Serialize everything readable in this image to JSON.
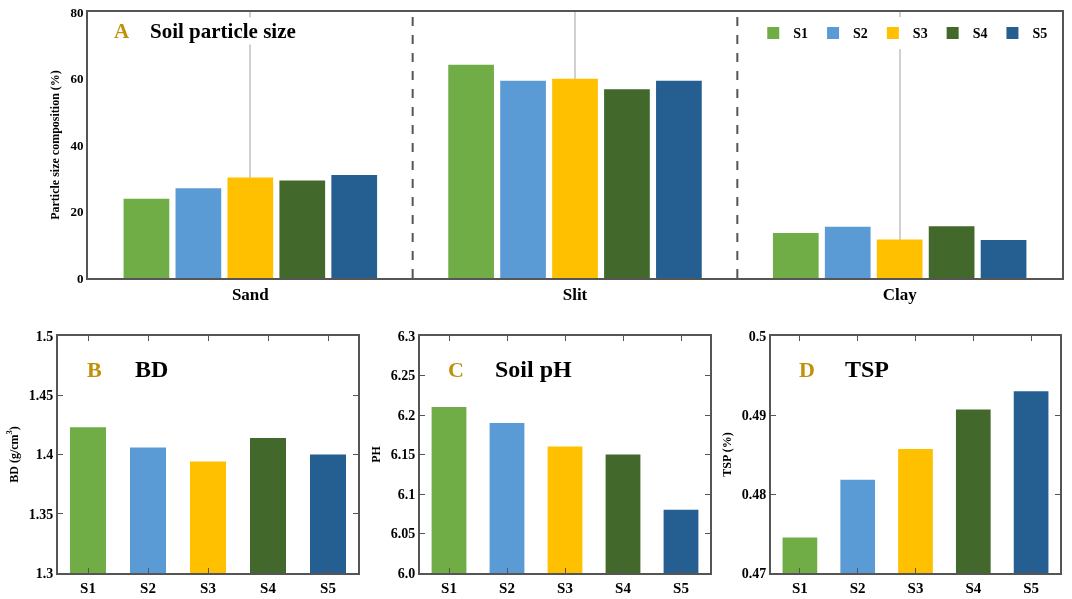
{
  "chart_data": [
    {
      "type": "bar",
      "title": "Soil particle size",
      "annotations": [
        "A"
      ],
      "ylabel": "Particle size composition (%)",
      "categories": [
        "Sand",
        "Slit",
        "Clay"
      ],
      "series": [
        {
          "name": "S1",
          "color": "#70ad47",
          "values": [
            23.8,
            64.1,
            13.5
          ]
        },
        {
          "name": "S2",
          "color": "#5b9bd5",
          "values": [
            27,
            59.3,
            15.4
          ]
        },
        {
          "name": "S3",
          "color": "#ffc000",
          "values": [
            30.2,
            59.9,
            11.6
          ]
        },
        {
          "name": "S4",
          "color": "#43682b",
          "values": [
            29.3,
            56.8,
            15.6
          ]
        },
        {
          "name": "S5",
          "color": "#255e91",
          "values": [
            31,
            59.3,
            11.4
          ]
        }
      ],
      "ylim": [
        0,
        80
      ],
      "yticks": [
        0,
        20,
        40,
        60,
        80
      ],
      "grid": "x",
      "legend": "top right"
    },
    {
      "type": "bar",
      "title": "BD",
      "annotations": [
        "B"
      ],
      "ylabel": "BD (g/cm$^{3}$)",
      "categories": [
        "S1",
        "S2",
        "S3",
        "S4",
        "S5"
      ],
      "values": [
        1.423,
        1.406,
        1.394,
        1.414,
        1.4
      ],
      "colors": [
        "#70ad47",
        "#5b9bd5",
        "#ffc000",
        "#43682b",
        "#255e91"
      ],
      "ylim": [
        1.3,
        1.5
      ],
      "yticks": [
        1.3,
        1.35,
        1.4,
        1.45,
        1.5
      ],
      "grid": false,
      "legend": false
    },
    {
      "type": "bar",
      "title": "Soil pH",
      "annotations": [
        "C"
      ],
      "ylabel": "PH",
      "categories": [
        "S1",
        "S2",
        "S3",
        "S4",
        "S5"
      ],
      "values": [
        6.21,
        6.19,
        6.16,
        6.15,
        6.08
      ],
      "colors": [
        "#70ad47",
        "#5b9bd5",
        "#ffc000",
        "#43682b",
        "#255e91"
      ],
      "ylim": [
        6,
        6.3
      ],
      "yticks": [
        {
          "value": 6,
          "label": "6.0"
        },
        6.05,
        6.1,
        6.15,
        6.2,
        6.25,
        6.3
      ],
      "grid": false,
      "legend": false
    },
    {
      "type": "bar",
      "title": "TSP",
      "annotations": [
        "D"
      ],
      "ylabel": "TSP (%)",
      "categories": [
        "S1",
        "S2",
        "S3",
        "S4",
        "S5"
      ],
      "values": [
        0.4745,
        0.4818,
        0.4857,
        0.4907,
        0.493
      ],
      "colors": [
        "#70ad47",
        "#5b9bd5",
        "#ffc000",
        "#43682b",
        "#255e91"
      ],
      "ylim": [
        0.47,
        0.5
      ],
      "yticks": [
        0.47,
        0.48,
        0.49,
        0.5
      ],
      "grid": false,
      "legend": false
    }
  ]
}
